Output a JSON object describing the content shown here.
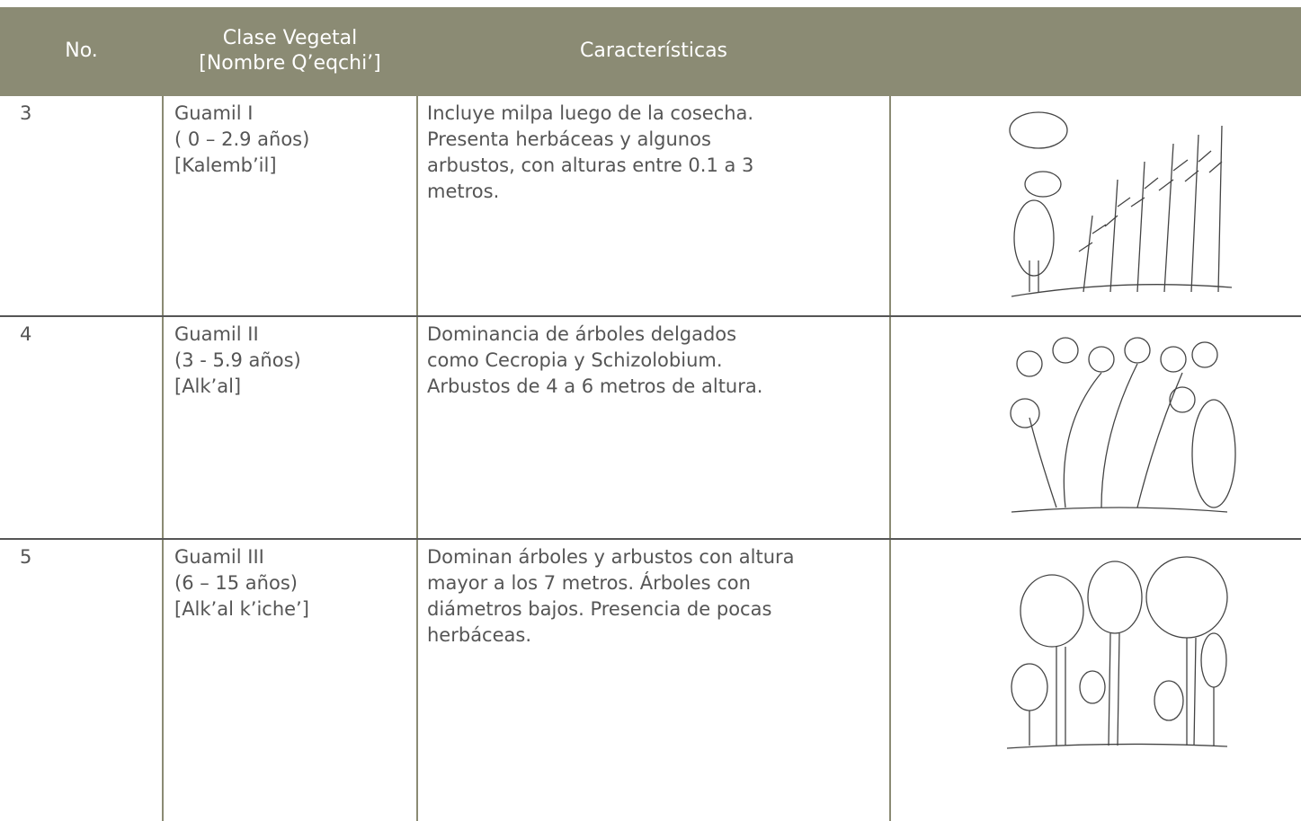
{
  "header": {
    "no": "No.",
    "clase": [
      "Clase Vegetal",
      "[Nombre Q’eqchi’]"
    ],
    "caracteristicas": "Características"
  },
  "rows": [
    {
      "no": "3",
      "clase": [
        "Guamil I",
        "( 0 – 2.9 años)",
        "[Kalemb’il]"
      ],
      "caracteristicas": [
        "Incluye milpa luego de la cosecha.",
        "Presenta herbáceas y algunos",
        "arbustos, con alturas entre 0.1 a 3",
        "metros."
      ]
    },
    {
      "no": "4",
      "clase": [
        "Guamil II",
        "(3 - 5.9 años)",
        "[Alk’al]"
      ],
      "caracteristicas": [
        "Dominancia de árboles delgados",
        "como Cecropia y Schizolobium.",
        "Arbustos de 4 a 6 metros de altura."
      ]
    },
    {
      "no": "5",
      "clase": [
        "Guamil III",
        "(6 – 15 años)",
        "[Alk’al k’iche’]"
      ],
      "caracteristicas": [
        "Dominan árboles y arbustos con altura",
        "mayor a los 7 metros. Árboles con",
        "diámetros bajos. Presencia de pocas",
        "herbáceas."
      ]
    }
  ]
}
